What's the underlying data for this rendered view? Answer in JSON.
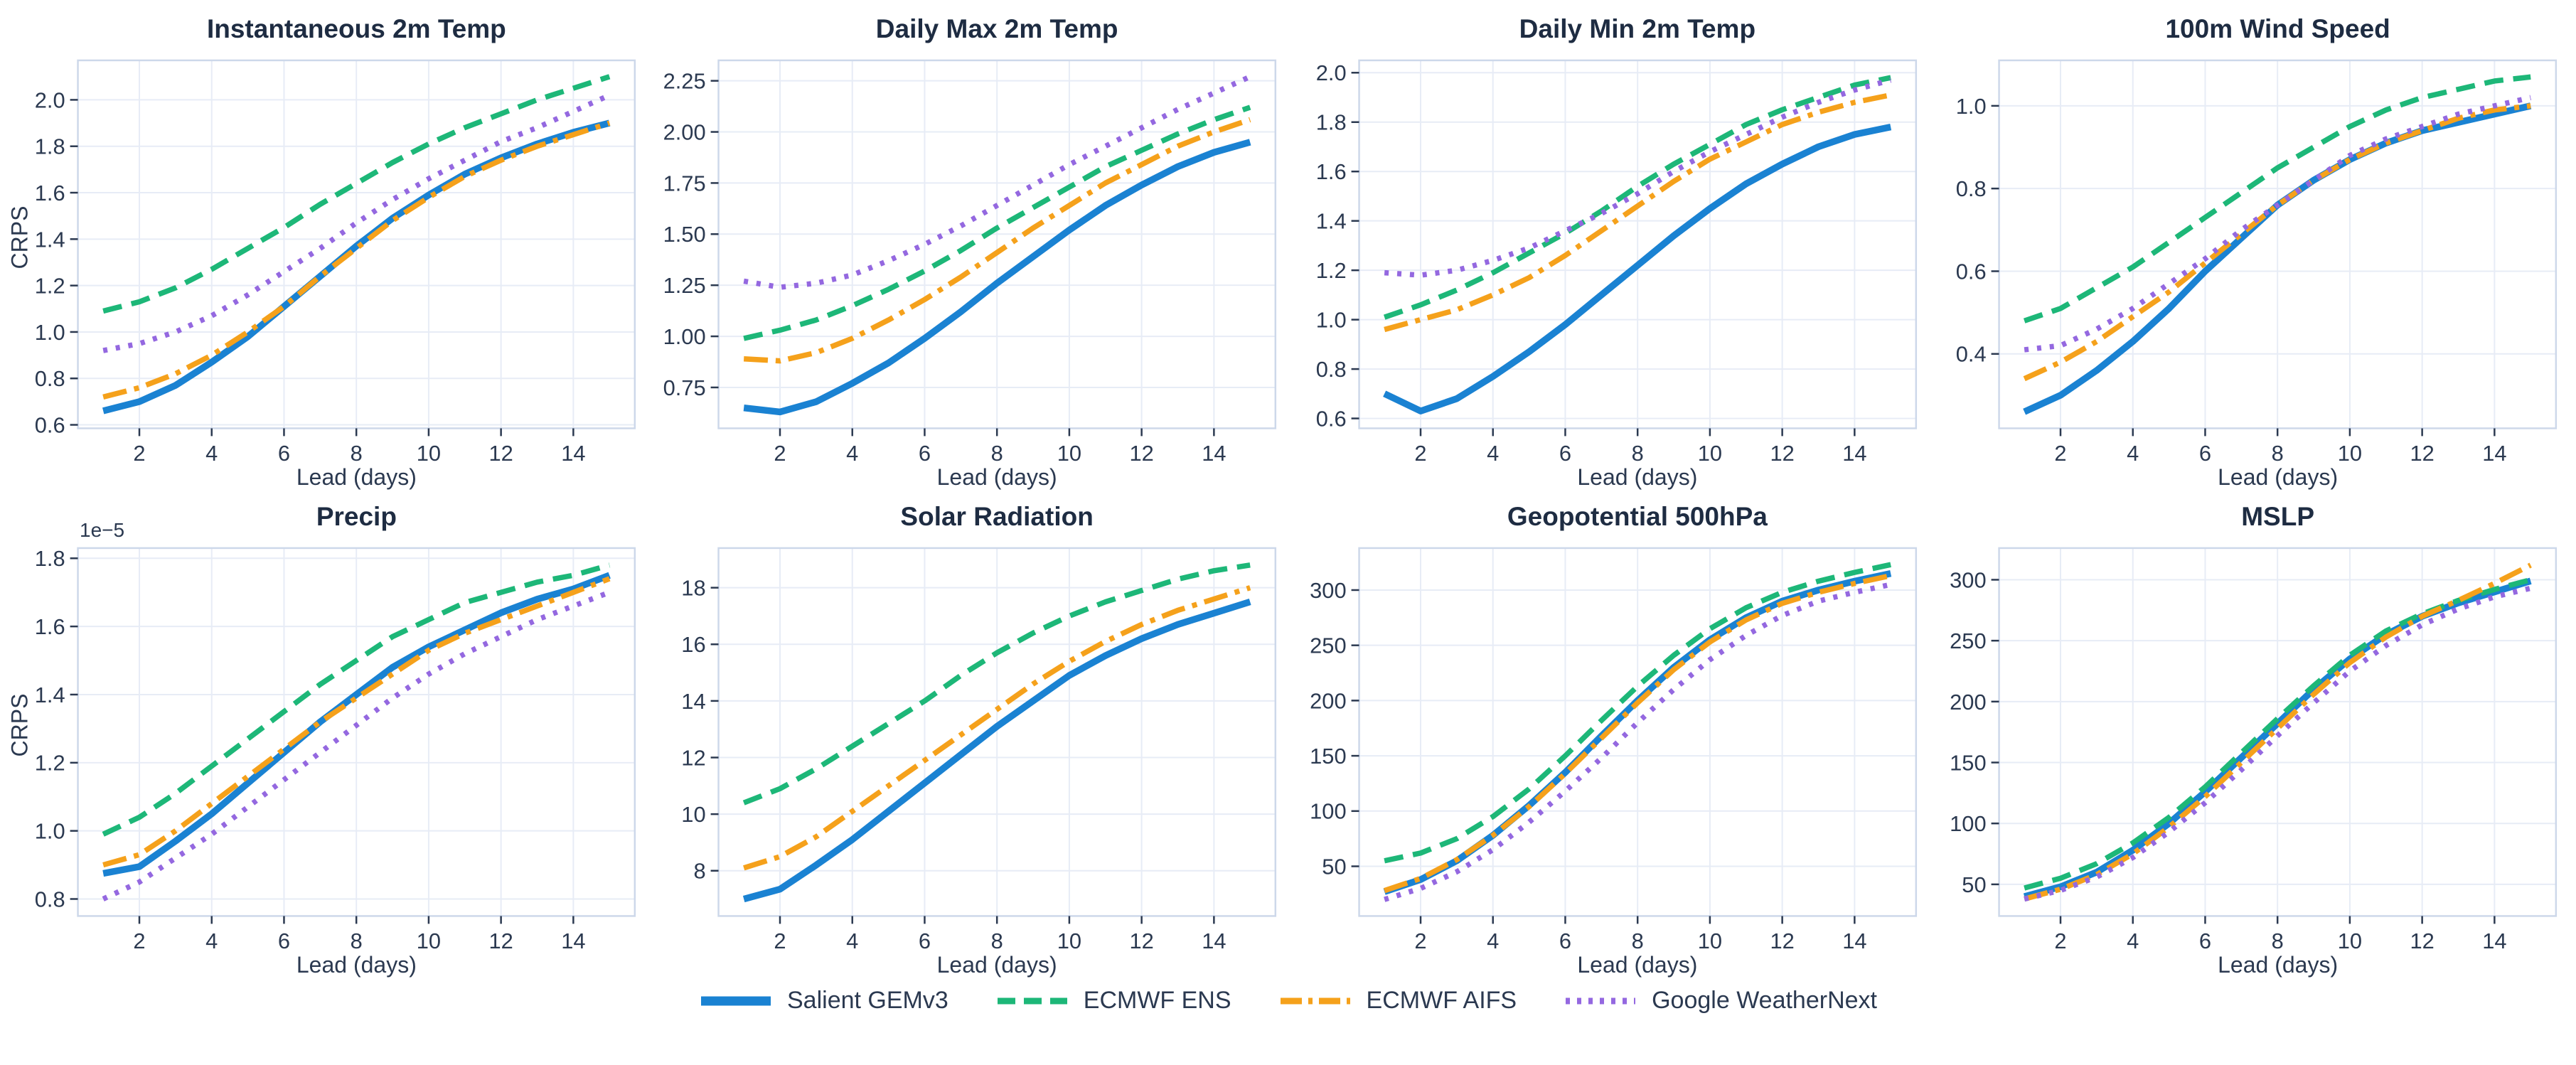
{
  "models": [
    {
      "name": "Salient GEMv3",
      "color": "#1a82d2",
      "dash": "solid"
    },
    {
      "name": "ECMWF ENS",
      "color": "#1db778",
      "dash": "dashed"
    },
    {
      "name": "ECMWF AIFS",
      "color": "#f5a11b",
      "dash": "dashdot"
    },
    {
      "name": "Google WeatherNext",
      "color": "#9468e0",
      "dash": "dotted"
    }
  ],
  "theme": {
    "grid_color": "#e7ecf6",
    "spine_color": "#cdd8ea",
    "tick_color": "#2b3950",
    "text_color": "#2b3950",
    "title_color": "#1e2c42"
  },
  "chart_data": [
    {
      "type": "line",
      "title": "Instantaneous 2m Temp",
      "xlabel": "Lead (days)",
      "ylabel": "CRPS",
      "xlim": [
        0.3,
        15.7
      ],
      "ylim": [
        0.585,
        2.17
      ],
      "x": [
        1,
        2,
        3,
        4,
        5,
        6,
        7,
        8,
        9,
        10,
        11,
        12,
        13,
        14,
        15
      ],
      "xticks": [
        2,
        4,
        6,
        8,
        10,
        12,
        14
      ],
      "yticks": {
        "vals": [
          0.6,
          0.8,
          1.0,
          1.2,
          1.4,
          1.6,
          1.8,
          2.0
        ],
        "labels": [
          "0.6",
          "0.8",
          "1.0",
          "1.2",
          "1.4",
          "1.6",
          "1.8",
          "2.0"
        ]
      },
      "series": [
        {
          "model": "Salient GEMv3",
          "values": [
            0.66,
            0.7,
            0.77,
            0.87,
            0.98,
            1.11,
            1.24,
            1.37,
            1.49,
            1.59,
            1.68,
            1.75,
            1.81,
            1.86,
            1.9
          ]
        },
        {
          "model": "ECMWF ENS",
          "values": [
            1.09,
            1.13,
            1.19,
            1.27,
            1.36,
            1.45,
            1.55,
            1.64,
            1.73,
            1.81,
            1.88,
            1.94,
            2.0,
            2.05,
            2.1
          ]
        },
        {
          "model": "ECMWF AIFS",
          "values": [
            0.72,
            0.76,
            0.82,
            0.9,
            1.0,
            1.11,
            1.24,
            1.36,
            1.48,
            1.58,
            1.67,
            1.74,
            1.8,
            1.85,
            1.9
          ]
        },
        {
          "model": "Google WeatherNext",
          "values": [
            0.92,
            0.95,
            1.0,
            1.07,
            1.16,
            1.26,
            1.36,
            1.47,
            1.57,
            1.66,
            1.74,
            1.82,
            1.88,
            1.95,
            2.02
          ]
        }
      ]
    },
    {
      "type": "line",
      "title": "Daily Max 2m Temp",
      "xlabel": "Lead (days)",
      "ylabel": "",
      "xlim": [
        0.3,
        15.7
      ],
      "ylim": [
        0.55,
        2.35
      ],
      "x": [
        1,
        2,
        3,
        4,
        5,
        6,
        7,
        8,
        9,
        10,
        11,
        12,
        13,
        14,
        15
      ],
      "xticks": [
        2,
        4,
        6,
        8,
        10,
        12,
        14
      ],
      "yticks": {
        "vals": [
          0.75,
          1.0,
          1.25,
          1.5,
          1.75,
          2.0,
          2.25
        ],
        "labels": [
          "0.75",
          "1.00",
          "1.25",
          "1.50",
          "1.75",
          "2.00",
          "2.25"
        ]
      },
      "series": [
        {
          "model": "Salient GEMv3",
          "values": [
            0.65,
            0.63,
            0.68,
            0.77,
            0.87,
            0.99,
            1.12,
            1.26,
            1.39,
            1.52,
            1.64,
            1.74,
            1.83,
            1.9,
            1.95
          ]
        },
        {
          "model": "ECMWF ENS",
          "values": [
            0.99,
            1.03,
            1.08,
            1.15,
            1.23,
            1.32,
            1.42,
            1.53,
            1.63,
            1.73,
            1.83,
            1.91,
            1.99,
            2.06,
            2.12
          ]
        },
        {
          "model": "ECMWF AIFS",
          "values": [
            0.89,
            0.88,
            0.92,
            0.99,
            1.08,
            1.18,
            1.29,
            1.41,
            1.53,
            1.64,
            1.75,
            1.84,
            1.93,
            2.0,
            2.06
          ]
        },
        {
          "model": "Google WeatherNext",
          "values": [
            1.27,
            1.24,
            1.26,
            1.3,
            1.37,
            1.45,
            1.54,
            1.64,
            1.74,
            1.84,
            1.93,
            2.02,
            2.11,
            2.19,
            2.27
          ]
        }
      ]
    },
    {
      "type": "line",
      "title": "Daily Min 2m Temp",
      "xlabel": "Lead (days)",
      "ylabel": "",
      "xlim": [
        0.3,
        15.7
      ],
      "ylim": [
        0.56,
        2.05
      ],
      "x": [
        1,
        2,
        3,
        4,
        5,
        6,
        7,
        8,
        9,
        10,
        11,
        12,
        13,
        14,
        15
      ],
      "xticks": [
        2,
        4,
        6,
        8,
        10,
        12,
        14
      ],
      "yticks": {
        "vals": [
          0.6,
          0.8,
          1.0,
          1.2,
          1.4,
          1.6,
          1.8,
          2.0
        ],
        "labels": [
          "0.6",
          "0.8",
          "1.0",
          "1.2",
          "1.4",
          "1.6",
          "1.8",
          "2.0"
        ]
      },
      "series": [
        {
          "model": "Salient GEMv3",
          "values": [
            0.7,
            0.63,
            0.68,
            0.77,
            0.87,
            0.98,
            1.1,
            1.22,
            1.34,
            1.45,
            1.55,
            1.63,
            1.7,
            1.75,
            1.78
          ]
        },
        {
          "model": "ECMWF ENS",
          "values": [
            1.01,
            1.06,
            1.12,
            1.19,
            1.27,
            1.35,
            1.44,
            1.54,
            1.63,
            1.71,
            1.79,
            1.85,
            1.9,
            1.95,
            1.98
          ]
        },
        {
          "model": "ECMWF AIFS",
          "values": [
            0.96,
            1.0,
            1.04,
            1.1,
            1.17,
            1.26,
            1.36,
            1.46,
            1.56,
            1.65,
            1.72,
            1.79,
            1.84,
            1.88,
            1.91
          ]
        },
        {
          "model": "Google WeatherNext",
          "values": [
            1.19,
            1.18,
            1.2,
            1.24,
            1.29,
            1.36,
            1.43,
            1.51,
            1.6,
            1.68,
            1.75,
            1.82,
            1.88,
            1.93,
            1.97
          ]
        }
      ]
    },
    {
      "type": "line",
      "title": "100m Wind Speed",
      "xlabel": "Lead (days)",
      "ylabel": "",
      "xlim": [
        0.3,
        15.7
      ],
      "ylim": [
        0.22,
        1.11
      ],
      "x": [
        1,
        2,
        3,
        4,
        5,
        6,
        7,
        8,
        9,
        10,
        11,
        12,
        13,
        14,
        15
      ],
      "xticks": [
        2,
        4,
        6,
        8,
        10,
        12,
        14
      ],
      "yticks": {
        "vals": [
          0.4,
          0.6,
          0.8,
          1.0
        ],
        "labels": [
          "0.4",
          "0.6",
          "0.8",
          "1.0"
        ]
      },
      "series": [
        {
          "model": "Salient GEMv3",
          "values": [
            0.26,
            0.3,
            0.36,
            0.43,
            0.51,
            0.6,
            0.68,
            0.76,
            0.82,
            0.87,
            0.91,
            0.94,
            0.96,
            0.98,
            1.0
          ]
        },
        {
          "model": "ECMWF ENS",
          "values": [
            0.48,
            0.51,
            0.56,
            0.61,
            0.67,
            0.73,
            0.79,
            0.85,
            0.9,
            0.95,
            0.99,
            1.02,
            1.04,
            1.06,
            1.07
          ]
        },
        {
          "model": "ECMWF AIFS",
          "values": [
            0.34,
            0.38,
            0.43,
            0.49,
            0.55,
            0.62,
            0.69,
            0.76,
            0.82,
            0.87,
            0.91,
            0.94,
            0.97,
            0.99,
            1.0
          ]
        },
        {
          "model": "Google WeatherNext",
          "values": [
            0.41,
            0.42,
            0.46,
            0.51,
            0.57,
            0.63,
            0.7,
            0.76,
            0.82,
            0.88,
            0.92,
            0.95,
            0.98,
            1.0,
            1.02
          ]
        }
      ]
    },
    {
      "type": "line",
      "title": "Precip",
      "xlabel": "Lead (days)",
      "ylabel": "CRPS",
      "offset_label": "1e−5",
      "xlim": [
        0.3,
        15.7
      ],
      "ylim": [
        0.75,
        1.83
      ],
      "x": [
        1,
        2,
        3,
        4,
        5,
        6,
        7,
        8,
        9,
        10,
        11,
        12,
        13,
        14,
        15
      ],
      "xticks": [
        2,
        4,
        6,
        8,
        10,
        12,
        14
      ],
      "yticks": {
        "vals": [
          0.8,
          1.0,
          1.2,
          1.4,
          1.6,
          1.8
        ],
        "labels": [
          "0.8",
          "1.0",
          "1.2",
          "1.4",
          "1.6",
          "1.8"
        ]
      },
      "series": [
        {
          "model": "Salient GEMv3",
          "values": [
            0.875,
            0.895,
            0.97,
            1.05,
            1.14,
            1.23,
            1.32,
            1.4,
            1.48,
            1.54,
            1.59,
            1.64,
            1.68,
            1.71,
            1.75
          ]
        },
        {
          "model": "ECMWF ENS",
          "values": [
            0.99,
            1.04,
            1.11,
            1.19,
            1.27,
            1.35,
            1.43,
            1.5,
            1.57,
            1.62,
            1.67,
            1.7,
            1.73,
            1.75,
            1.78
          ]
        },
        {
          "model": "ECMWF AIFS",
          "values": [
            0.9,
            0.93,
            1.0,
            1.08,
            1.16,
            1.24,
            1.32,
            1.39,
            1.46,
            1.53,
            1.58,
            1.62,
            1.66,
            1.7,
            1.74
          ]
        },
        {
          "model": "Google WeatherNext",
          "values": [
            0.8,
            0.85,
            0.92,
            0.99,
            1.07,
            1.15,
            1.23,
            1.31,
            1.39,
            1.46,
            1.52,
            1.57,
            1.62,
            1.66,
            1.7
          ]
        }
      ]
    },
    {
      "type": "line",
      "title": "Solar Radiation",
      "xlabel": "Lead (days)",
      "ylabel": "",
      "xlim": [
        0.3,
        15.7
      ],
      "ylim": [
        6.4,
        19.4
      ],
      "x": [
        1,
        2,
        3,
        4,
        5,
        6,
        7,
        8,
        9,
        10,
        11,
        12,
        13,
        14,
        15
      ],
      "xticks": [
        2,
        4,
        6,
        8,
        10,
        12,
        14
      ],
      "yticks": {
        "vals": [
          8,
          10,
          12,
          14,
          16,
          18
        ],
        "labels": [
          "8",
          "10",
          "12",
          "14",
          "16",
          "18"
        ]
      },
      "series": [
        {
          "model": "Salient GEMv3",
          "values": [
            7.0,
            7.35,
            8.2,
            9.1,
            10.1,
            11.1,
            12.1,
            13.1,
            14.0,
            14.9,
            15.6,
            16.2,
            16.7,
            17.1,
            17.5
          ]
        },
        {
          "model": "ECMWF ENS",
          "values": [
            10.4,
            10.9,
            11.6,
            12.4,
            13.2,
            14.0,
            14.9,
            15.7,
            16.4,
            17.0,
            17.5,
            17.9,
            18.3,
            18.6,
            18.8
          ]
        },
        {
          "model": "ECMWF AIFS",
          "values": [
            8.1,
            8.5,
            9.2,
            10.1,
            11.0,
            11.9,
            12.8,
            13.7,
            14.6,
            15.4,
            16.1,
            16.7,
            17.2,
            17.6,
            18.0
          ]
        }
      ]
    },
    {
      "type": "line",
      "title": "Geopotential 500hPa",
      "xlabel": "Lead (days)",
      "ylabel": "",
      "xlim": [
        0.3,
        15.7
      ],
      "ylim": [
        5,
        338
      ],
      "x": [
        1,
        2,
        3,
        4,
        5,
        6,
        7,
        8,
        9,
        10,
        11,
        12,
        13,
        14,
        15
      ],
      "xticks": [
        2,
        4,
        6,
        8,
        10,
        12,
        14
      ],
      "yticks": {
        "vals": [
          50,
          100,
          150,
          200,
          250,
          300
        ],
        "labels": [
          "50",
          "100",
          "150",
          "200",
          "250",
          "300"
        ]
      },
      "series": [
        {
          "model": "Salient GEMv3",
          "values": [
            27,
            38,
            55,
            78,
            105,
            135,
            168,
            200,
            230,
            255,
            275,
            290,
            300,
            308,
            315
          ]
        },
        {
          "model": "ECMWF ENS",
          "values": [
            55,
            62,
            75,
            95,
            120,
            150,
            182,
            213,
            241,
            265,
            284,
            298,
            308,
            316,
            323
          ]
        },
        {
          "model": "ECMWF AIFS",
          "values": [
            28,
            39,
            56,
            78,
            104,
            134,
            166,
            198,
            228,
            253,
            273,
            288,
            298,
            306,
            313
          ]
        },
        {
          "model": "Google WeatherNext",
          "values": [
            20,
            30,
            45,
            65,
            90,
            118,
            148,
            180,
            210,
            237,
            259,
            277,
            290,
            298,
            305
          ]
        }
      ]
    },
    {
      "type": "line",
      "title": "MSLP",
      "xlabel": "Lead (days)",
      "ylabel": "",
      "xlim": [
        0.3,
        15.7
      ],
      "ylim": [
        24,
        326
      ],
      "x": [
        1,
        2,
        3,
        4,
        5,
        6,
        7,
        8,
        9,
        10,
        11,
        12,
        13,
        14,
        15
      ],
      "xticks": [
        2,
        4,
        6,
        8,
        10,
        12,
        14
      ],
      "yticks": {
        "vals": [
          50,
          100,
          150,
          200,
          250,
          300
        ],
        "labels": [
          "50",
          "100",
          "150",
          "200",
          "250",
          "300"
        ]
      },
      "series": [
        {
          "model": "Salient GEMv3",
          "values": [
            40,
            48,
            60,
            78,
            100,
            126,
            154,
            182,
            210,
            235,
            255,
            270,
            281,
            290,
            299
          ]
        },
        {
          "model": "ECMWF ENS",
          "values": [
            47,
            55,
            67,
            84,
            105,
            130,
            158,
            186,
            213,
            238,
            258,
            272,
            283,
            292,
            300
          ]
        },
        {
          "model": "ECMWF AIFS",
          "values": [
            38,
            46,
            58,
            75,
            97,
            122,
            150,
            178,
            206,
            232,
            253,
            270,
            283,
            297,
            312
          ]
        },
        {
          "model": "Google WeatherNext",
          "values": [
            38,
            45,
            56,
            72,
            93,
            117,
            144,
            172,
            199,
            225,
            246,
            263,
            276,
            286,
            293
          ]
        }
      ]
    }
  ]
}
